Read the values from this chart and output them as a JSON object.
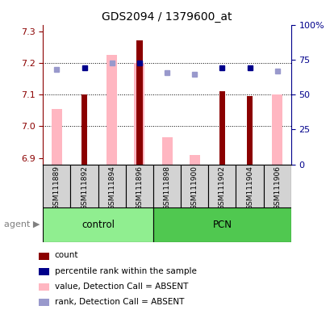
{
  "title": "GDS2094 / 1379600_at",
  "samples": [
    "GSM111889",
    "GSM111892",
    "GSM111894",
    "GSM111896",
    "GSM111898",
    "GSM111900",
    "GSM111902",
    "GSM111904",
    "GSM111906"
  ],
  "control_indices": [
    0,
    1,
    2,
    3
  ],
  "pcn_indices": [
    4,
    5,
    6,
    7,
    8
  ],
  "ylim_left": [
    6.88,
    7.32
  ],
  "ylim_right": [
    0,
    100
  ],
  "yticks_left": [
    6.9,
    7.0,
    7.1,
    7.2,
    7.3
  ],
  "yticks_right": [
    0,
    25,
    50,
    75,
    100
  ],
  "ytick_labels_right": [
    "0",
    "25",
    "50",
    "75",
    "100%"
  ],
  "red_bars": [
    null,
    7.1,
    null,
    7.27,
    null,
    null,
    7.11,
    7.095,
    null
  ],
  "pink_bars": [
    7.055,
    null,
    7.225,
    7.2,
    6.965,
    6.91,
    null,
    null,
    7.1
  ],
  "blue_squares_left": [
    null,
    7.185,
    null,
    7.2,
    null,
    null,
    7.185,
    7.185,
    null
  ],
  "light_blue_squares_left": [
    7.18,
    null,
    7.2,
    null,
    7.17,
    7.165,
    null,
    null,
    7.175
  ],
  "red_bar_width": 0.22,
  "pink_bar_width": 0.38,
  "red_color": "#8B0000",
  "pink_color": "#FFB6C1",
  "blue_color": "#00008B",
  "light_blue_color": "#9999CC",
  "control_green": "#90EE90",
  "pcn_green": "#50C850",
  "gray_box": "#D3D3D3",
  "base_value": 6.88,
  "grid_lines": [
    7.0,
    7.1,
    7.2
  ],
  "legend_items": [
    {
      "color": "#8B0000",
      "label": "count"
    },
    {
      "color": "#00008B",
      "label": "percentile rank within the sample"
    },
    {
      "color": "#FFB6C1",
      "label": "value, Detection Call = ABSENT"
    },
    {
      "color": "#9999CC",
      "label": "rank, Detection Call = ABSENT"
    }
  ]
}
